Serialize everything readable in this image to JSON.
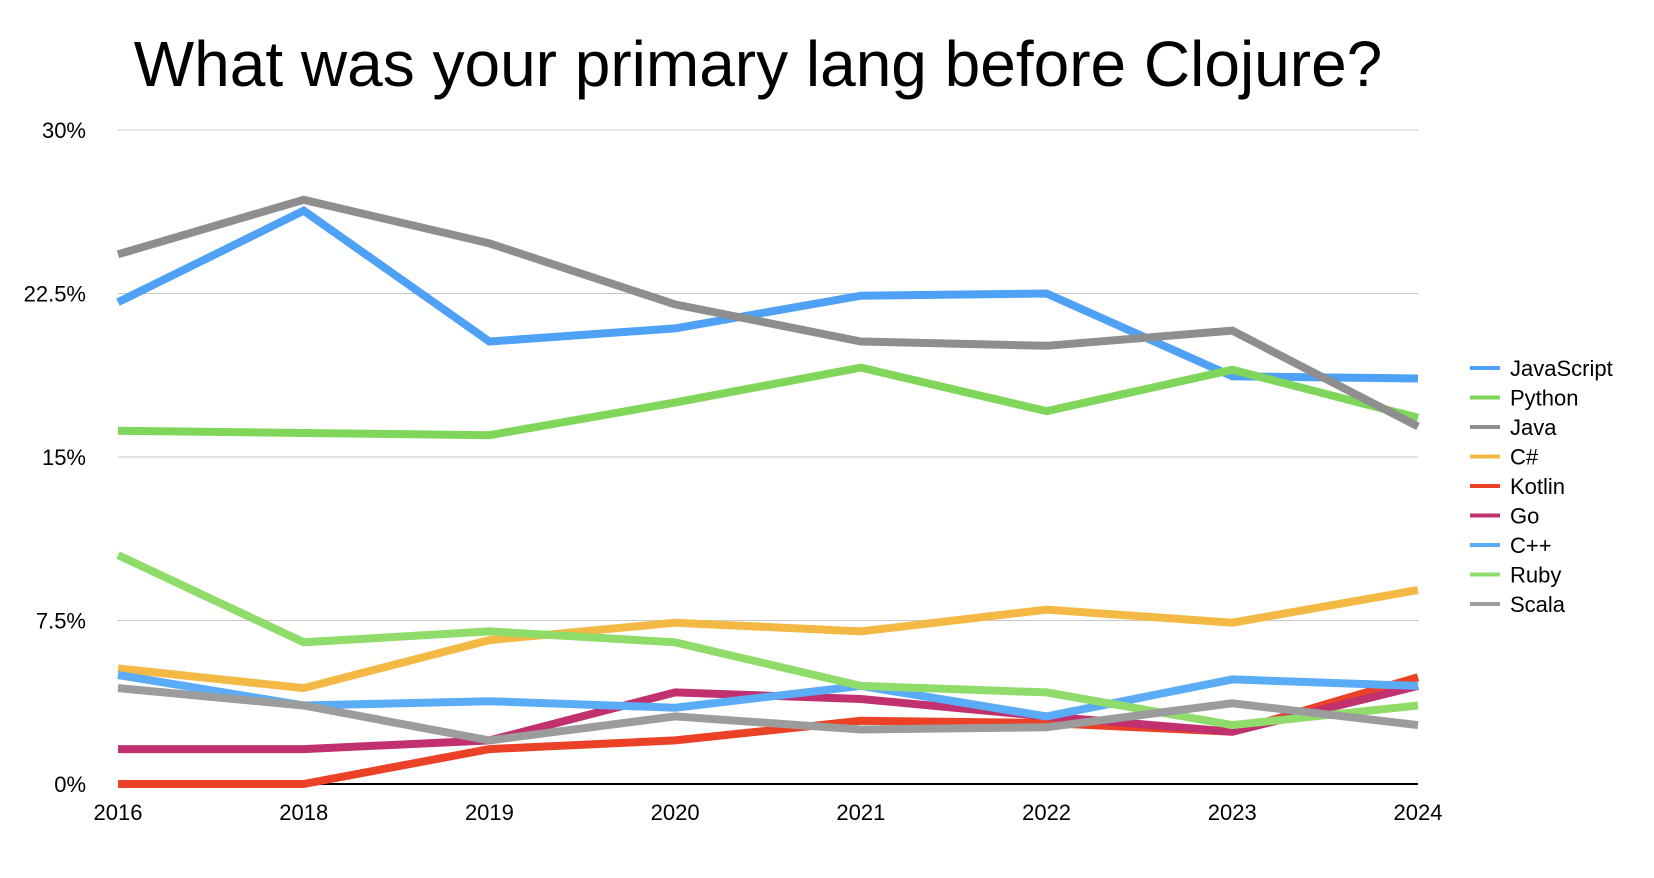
{
  "chart_data": {
    "type": "line",
    "title": "What was your primary lang before Clojure?",
    "xlabel": "",
    "ylabel": "",
    "categories": [
      "2016",
      "2018",
      "2019",
      "2020",
      "2021",
      "2022",
      "2023",
      "2024"
    ],
    "ylim": [
      0,
      30
    ],
    "yticks": [
      0,
      7.5,
      15,
      22.5,
      30
    ],
    "ytick_labels": [
      "0%",
      "7.5%",
      "15%",
      "22.5%",
      "30%"
    ],
    "grid": true,
    "legend_position": "right",
    "series": [
      {
        "name": "JavaScript",
        "color": "#4ea1f5",
        "values": [
          22.1,
          26.3,
          20.3,
          20.9,
          22.4,
          22.5,
          18.7,
          18.6
        ]
      },
      {
        "name": "Python",
        "color": "#7fd65a",
        "values": [
          16.2,
          16.1,
          16.0,
          17.5,
          19.1,
          17.1,
          19.0,
          16.8
        ]
      },
      {
        "name": "Java",
        "color": "#8e8e8e",
        "values": [
          24.3,
          26.8,
          24.8,
          22.0,
          20.3,
          20.1,
          20.8,
          16.4
        ]
      },
      {
        "name": "C#",
        "color": "#f3b944",
        "values": [
          5.3,
          4.4,
          6.6,
          7.4,
          7.0,
          8.0,
          7.4,
          8.9
        ]
      },
      {
        "name": "Kotlin",
        "color": "#ea4127",
        "values": [
          0.0,
          0.0,
          1.6,
          2.0,
          2.9,
          2.8,
          2.4,
          4.9
        ]
      },
      {
        "name": "Go",
        "color": "#c2316f",
        "values": [
          1.6,
          1.6,
          2.0,
          4.2,
          3.9,
          3.1,
          2.4,
          4.5
        ]
      },
      {
        "name": "C++",
        "color": "#5aacf7",
        "values": [
          5.0,
          3.6,
          3.8,
          3.5,
          4.5,
          3.1,
          4.8,
          4.5
        ]
      },
      {
        "name": "Ruby",
        "color": "#8fdc6a",
        "values": [
          10.5,
          6.5,
          7.0,
          6.5,
          4.5,
          4.2,
          2.7,
          3.6
        ]
      },
      {
        "name": "Scala",
        "color": "#9c9c9c",
        "values": [
          4.4,
          3.6,
          2.0,
          3.1,
          2.5,
          2.6,
          3.7,
          2.7
        ]
      }
    ]
  }
}
